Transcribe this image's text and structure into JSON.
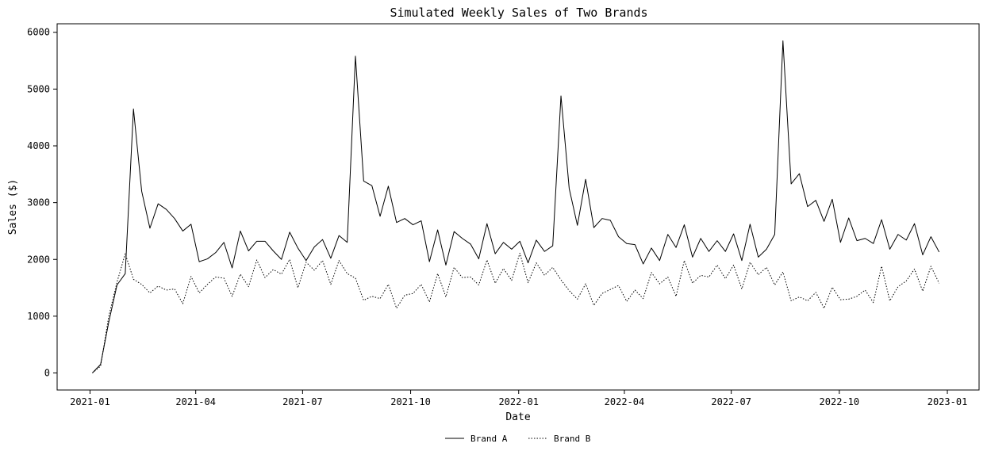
{
  "chart_data": {
    "type": "line",
    "title": "Simulated Weekly Sales of Two Brands",
    "xlabel": "Date",
    "ylabel": "Sales ($)",
    "x_start": "2021-01-03",
    "x_interval_days": 7,
    "xlim": [
      "2020-12-04",
      "2023-01-28"
    ],
    "ylim": [
      -300,
      6150
    ],
    "x_ticks": [
      {
        "date": "2021-01-01",
        "label": "2021-01"
      },
      {
        "date": "2021-04-01",
        "label": "2021-04"
      },
      {
        "date": "2021-07-01",
        "label": "2021-07"
      },
      {
        "date": "2021-10-01",
        "label": "2021-10"
      },
      {
        "date": "2022-01-01",
        "label": "2022-01"
      },
      {
        "date": "2022-04-01",
        "label": "2022-04"
      },
      {
        "date": "2022-07-01",
        "label": "2022-07"
      },
      {
        "date": "2022-10-01",
        "label": "2022-10"
      },
      {
        "date": "2023-01-01",
        "label": "2023-01"
      }
    ],
    "y_ticks": [
      0,
      1000,
      2000,
      3000,
      4000,
      5000,
      6000
    ],
    "legend_position": "bottom-center",
    "grid": false,
    "series": [
      {
        "name": "Brand A",
        "line_style": "solid",
        "color": "#000000",
        "values": [
          0,
          150,
          900,
          1550,
          1750,
          4650,
          3200,
          2550,
          2980,
          2880,
          2720,
          2500,
          2620,
          1960,
          2010,
          2120,
          2300,
          1850,
          2500,
          2150,
          2320,
          2320,
          2150,
          2000,
          2480,
          2200,
          1980,
          2220,
          2350,
          2020,
          2420,
          2300,
          5580,
          3380,
          3300,
          2760,
          3290,
          2650,
          2720,
          2610,
          2680,
          1960,
          2520,
          1900,
          2490,
          2370,
          2270,
          2010,
          2630,
          2100,
          2300,
          2180,
          2320,
          1940,
          2340,
          2140,
          2240,
          4880,
          3250,
          2600,
          3410,
          2560,
          2720,
          2690,
          2400,
          2280,
          2260,
          1920,
          2200,
          1980,
          2440,
          2210,
          2610,
          2040,
          2370,
          2140,
          2330,
          2140,
          2450,
          1980,
          2620,
          2040,
          2180,
          2440,
          5850,
          3330,
          3510,
          2930,
          3040,
          2670,
          3060,
          2300,
          2730,
          2330,
          2370,
          2280,
          2700,
          2180,
          2440,
          2340,
          2630,
          2080,
          2400,
          2130
        ]
      },
      {
        "name": "Brand B",
        "line_style": "dotted",
        "color": "#000000",
        "values": [
          0,
          120,
          1000,
          1600,
          2100,
          1650,
          1560,
          1410,
          1530,
          1460,
          1480,
          1220,
          1700,
          1410,
          1560,
          1690,
          1670,
          1350,
          1740,
          1520,
          1990,
          1680,
          1820,
          1740,
          2000,
          1500,
          1950,
          1810,
          1980,
          1560,
          1980,
          1750,
          1670,
          1280,
          1350,
          1310,
          1560,
          1140,
          1370,
          1400,
          1560,
          1250,
          1750,
          1340,
          1860,
          1680,
          1690,
          1550,
          1990,
          1580,
          1840,
          1630,
          2110,
          1590,
          1940,
          1720,
          1860,
          1640,
          1450,
          1300,
          1570,
          1190,
          1400,
          1470,
          1540,
          1260,
          1460,
          1310,
          1770,
          1570,
          1690,
          1350,
          1980,
          1580,
          1720,
          1690,
          1900,
          1660,
          1900,
          1480,
          1950,
          1730,
          1860,
          1550,
          1780,
          1270,
          1340,
          1270,
          1420,
          1140,
          1510,
          1290,
          1300,
          1350,
          1460,
          1240,
          1880,
          1270,
          1520,
          1620,
          1830,
          1440,
          1880,
          1580
        ]
      }
    ]
  }
}
